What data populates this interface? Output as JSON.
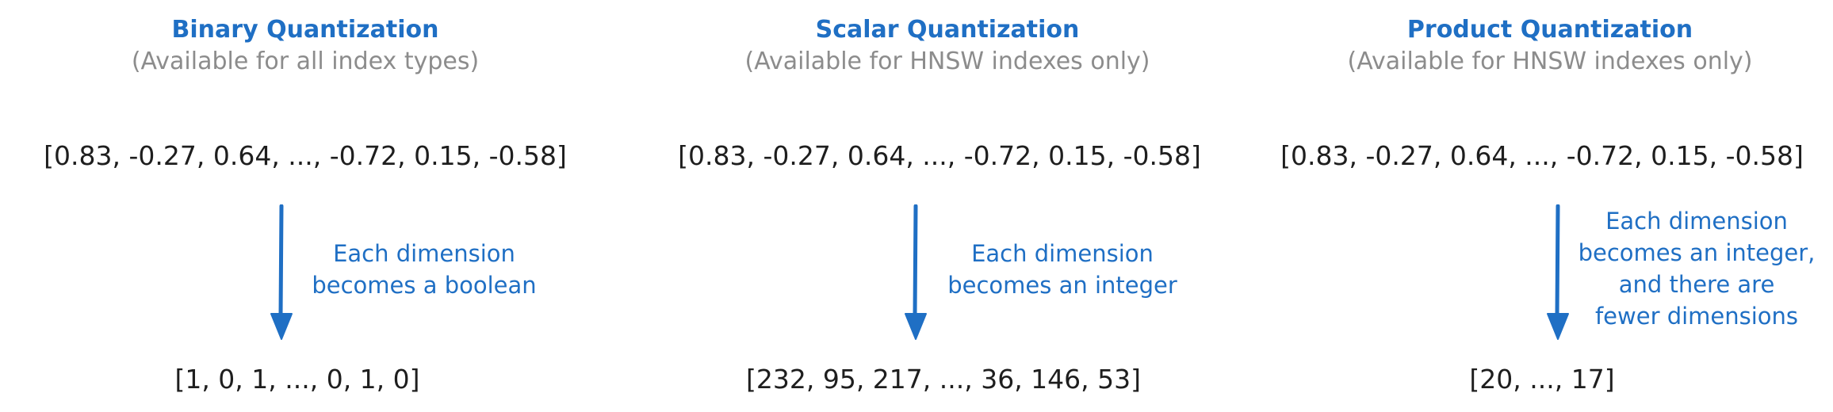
{
  "panels": [
    {
      "title": "Binary Quantization",
      "subtitle": "(Available for all index types)",
      "input_vector": "[0.83, -0.27, 0.64, ..., -0.72, 0.15, -0.58]",
      "note_lines": [
        "Each dimension",
        "becomes a boolean"
      ],
      "output_vector": "[1, 0, 1, ..., 0, 1, 0]"
    },
    {
      "title": "Scalar Quantization",
      "subtitle": "(Available for HNSW indexes only)",
      "input_vector": "[0.83, -0.27, 0.64, ..., -0.72, 0.15, -0.58]",
      "note_lines": [
        "Each dimension",
        "becomes an integer"
      ],
      "output_vector": "[232, 95, 217, ..., 36, 146, 53]"
    },
    {
      "title": "Product Quantization",
      "subtitle": "(Available for HNSW indexes only)",
      "input_vector": "[0.83, -0.27, 0.64, ..., -0.72, 0.15, -0.58]",
      "note_lines": [
        "Each dimension",
        "becomes an integer,",
        "and there are",
        "fewer dimensions"
      ],
      "output_vector": "[20, ..., 17]"
    }
  ],
  "colors": {
    "accent": "#1f6fc4",
    "subtitle": "#8c8c8c",
    "text": "#1e1e1e"
  },
  "icons": {
    "arrow": "arrow-down-icon"
  }
}
